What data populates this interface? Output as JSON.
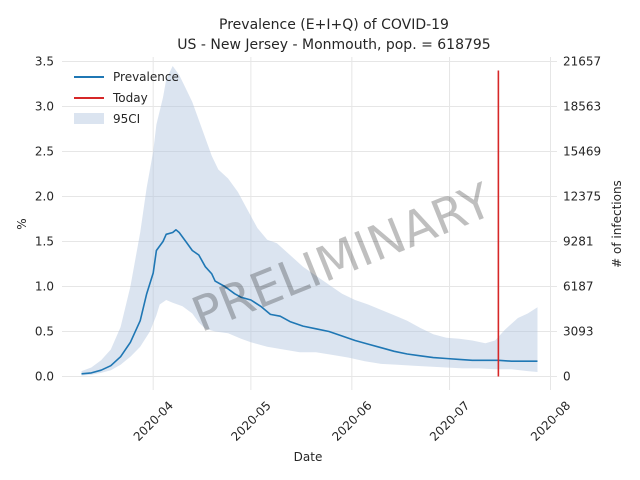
{
  "chart_data": {
    "type": "line",
    "title_line1": "Prevalence (E+I+Q) of COVID-19",
    "title_line2": "US - New Jersey - Monmouth, pop. = 618795",
    "xlabel": "Date",
    "ylabel": "%",
    "ylabel_right": "# of infections",
    "x_ticks": [
      "2020-04",
      "2020-05",
      "2020-06",
      "2020-07",
      "2020-08"
    ],
    "x_tick_dates": [
      "2020-04-01",
      "2020-05-01",
      "2020-06-01",
      "2020-07-01",
      "2020-08-01"
    ],
    "xlim": [
      "2020-03-04",
      "2020-08-03"
    ],
    "ylim": [
      -0.15,
      3.55
    ],
    "y_ticks": [
      "0.0",
      "0.5",
      "1.0",
      "1.5",
      "2.0",
      "2.5",
      "3.0",
      "3.5"
    ],
    "y_right_ticks": [
      "0",
      "3093",
      "6187",
      "9281",
      "12375",
      "15469",
      "18563",
      "21657"
    ],
    "grid": true,
    "legend_position": "top-left",
    "watermark": "PRELIMINARY",
    "today": {
      "label": "Today",
      "date": "2020-07-16",
      "y_range": [
        0,
        3.4
      ],
      "color": "#d62728"
    },
    "prevalence": {
      "name": "Prevalence",
      "color": "#1f77b4",
      "points": [
        [
          "2020-03-10",
          0.03
        ],
        [
          "2020-03-13",
          0.04
        ],
        [
          "2020-03-16",
          0.07
        ],
        [
          "2020-03-19",
          0.12
        ],
        [
          "2020-03-22",
          0.22
        ],
        [
          "2020-03-25",
          0.38
        ],
        [
          "2020-03-28",
          0.62
        ],
        [
          "2020-03-30",
          0.92
        ],
        [
          "2020-04-01",
          1.15
        ],
        [
          "2020-04-02",
          1.4
        ],
        [
          "2020-04-04",
          1.5
        ],
        [
          "2020-04-05",
          1.58
        ],
        [
          "2020-04-07",
          1.6
        ],
        [
          "2020-04-08",
          1.63
        ],
        [
          "2020-04-09",
          1.6
        ],
        [
          "2020-04-11",
          1.5
        ],
        [
          "2020-04-13",
          1.4
        ],
        [
          "2020-04-15",
          1.35
        ],
        [
          "2020-04-17",
          1.22
        ],
        [
          "2020-04-19",
          1.14
        ],
        [
          "2020-04-20",
          1.06
        ],
        [
          "2020-04-23",
          1.0
        ],
        [
          "2020-04-26",
          0.92
        ],
        [
          "2020-04-28",
          0.88
        ],
        [
          "2020-05-01",
          0.85
        ],
        [
          "2020-05-04",
          0.78
        ],
        [
          "2020-05-07",
          0.69
        ],
        [
          "2020-05-10",
          0.67
        ],
        [
          "2020-05-13",
          0.61
        ],
        [
          "2020-05-17",
          0.56
        ],
        [
          "2020-05-21",
          0.53
        ],
        [
          "2020-05-25",
          0.5
        ],
        [
          "2020-05-29",
          0.45
        ],
        [
          "2020-06-02",
          0.4
        ],
        [
          "2020-06-06",
          0.36
        ],
        [
          "2020-06-10",
          0.32
        ],
        [
          "2020-06-14",
          0.28
        ],
        [
          "2020-06-18",
          0.25
        ],
        [
          "2020-06-22",
          0.23
        ],
        [
          "2020-06-26",
          0.21
        ],
        [
          "2020-06-30",
          0.2
        ],
        [
          "2020-07-04",
          0.19
        ],
        [
          "2020-07-08",
          0.18
        ],
        [
          "2020-07-12",
          0.18
        ],
        [
          "2020-07-16",
          0.18
        ],
        [
          "2020-07-20",
          0.17
        ],
        [
          "2020-07-24",
          0.17
        ],
        [
          "2020-07-28",
          0.17
        ]
      ]
    },
    "ci95": {
      "name": "95CI",
      "color": "#b0c4de",
      "upper": [
        [
          "2020-03-10",
          0.06
        ],
        [
          "2020-03-13",
          0.1
        ],
        [
          "2020-03-16",
          0.18
        ],
        [
          "2020-03-19",
          0.3
        ],
        [
          "2020-03-22",
          0.55
        ],
        [
          "2020-03-25",
          1.0
        ],
        [
          "2020-03-28",
          1.6
        ],
        [
          "2020-03-30",
          2.1
        ],
        [
          "2020-04-01",
          2.5
        ],
        [
          "2020-04-02",
          2.8
        ],
        [
          "2020-04-04",
          3.1
        ],
        [
          "2020-04-05",
          3.3
        ],
        [
          "2020-04-07",
          3.45
        ],
        [
          "2020-04-09",
          3.35
        ],
        [
          "2020-04-11",
          3.2
        ],
        [
          "2020-04-13",
          3.05
        ],
        [
          "2020-04-15",
          2.85
        ],
        [
          "2020-04-17",
          2.65
        ],
        [
          "2020-04-19",
          2.45
        ],
        [
          "2020-04-21",
          2.3
        ],
        [
          "2020-04-24",
          2.2
        ],
        [
          "2020-04-27",
          2.05
        ],
        [
          "2020-04-30",
          1.85
        ],
        [
          "2020-05-03",
          1.65
        ],
        [
          "2020-05-06",
          1.52
        ],
        [
          "2020-05-09",
          1.48
        ],
        [
          "2020-05-13",
          1.35
        ],
        [
          "2020-05-17",
          1.22
        ],
        [
          "2020-05-21",
          1.12
        ],
        [
          "2020-05-25",
          1.02
        ],
        [
          "2020-05-29",
          0.92
        ],
        [
          "2020-06-02",
          0.85
        ],
        [
          "2020-06-06",
          0.8
        ],
        [
          "2020-06-10",
          0.74
        ],
        [
          "2020-06-14",
          0.68
        ],
        [
          "2020-06-18",
          0.62
        ],
        [
          "2020-06-22",
          0.54
        ],
        [
          "2020-06-26",
          0.47
        ],
        [
          "2020-06-30",
          0.43
        ],
        [
          "2020-07-04",
          0.42
        ],
        [
          "2020-07-08",
          0.4
        ],
        [
          "2020-07-12",
          0.37
        ],
        [
          "2020-07-15",
          0.4
        ],
        [
          "2020-07-18",
          0.52
        ],
        [
          "2020-07-22",
          0.65
        ],
        [
          "2020-07-25",
          0.7
        ],
        [
          "2020-07-28",
          0.77
        ]
      ],
      "lower": [
        [
          "2020-03-10",
          0.01
        ],
        [
          "2020-03-13",
          0.02
        ],
        [
          "2020-03-16",
          0.04
        ],
        [
          "2020-03-19",
          0.07
        ],
        [
          "2020-03-22",
          0.13
        ],
        [
          "2020-03-25",
          0.22
        ],
        [
          "2020-03-28",
          0.33
        ],
        [
          "2020-03-31",
          0.5
        ],
        [
          "2020-04-02",
          0.68
        ],
        [
          "2020-04-03",
          0.8
        ],
        [
          "2020-04-05",
          0.85
        ],
        [
          "2020-04-07",
          0.82
        ],
        [
          "2020-04-10",
          0.78
        ],
        [
          "2020-04-13",
          0.7
        ],
        [
          "2020-04-15",
          0.6
        ],
        [
          "2020-04-17",
          0.53
        ],
        [
          "2020-04-20",
          0.5
        ],
        [
          "2020-04-24",
          0.48
        ],
        [
          "2020-04-28",
          0.42
        ],
        [
          "2020-05-01",
          0.38
        ],
        [
          "2020-05-06",
          0.33
        ],
        [
          "2020-05-11",
          0.3
        ],
        [
          "2020-05-16",
          0.27
        ],
        [
          "2020-05-21",
          0.27
        ],
        [
          "2020-05-26",
          0.24
        ],
        [
          "2020-05-31",
          0.21
        ],
        [
          "2020-06-05",
          0.17
        ],
        [
          "2020-06-10",
          0.14
        ],
        [
          "2020-06-15",
          0.13
        ],
        [
          "2020-06-20",
          0.12
        ],
        [
          "2020-06-25",
          0.11
        ],
        [
          "2020-06-30",
          0.1
        ],
        [
          "2020-07-05",
          0.09
        ],
        [
          "2020-07-10",
          0.09
        ],
        [
          "2020-07-15",
          0.08
        ],
        [
          "2020-07-20",
          0.08
        ],
        [
          "2020-07-25",
          0.06
        ],
        [
          "2020-07-28",
          0.05
        ]
      ]
    }
  }
}
